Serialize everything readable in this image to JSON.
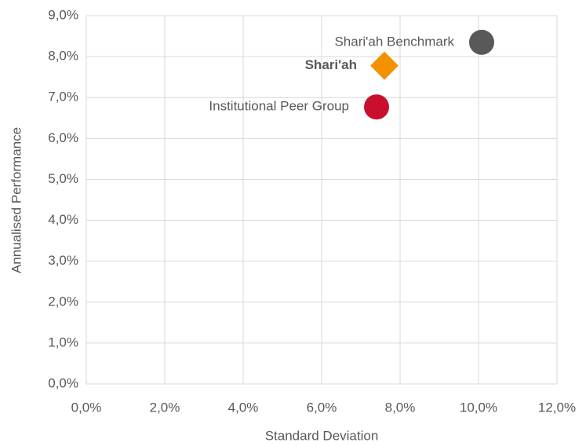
{
  "chart_data": {
    "type": "scatter",
    "x_label": "Standard Deviation",
    "y_label": "Annualised Performance",
    "xlim": [
      0,
      12
    ],
    "xticks": [
      {
        "value": 0,
        "label": "0,0%"
      },
      {
        "value": 2,
        "label": "2,0%"
      },
      {
        "value": 4,
        "label": "4,0%"
      },
      {
        "value": 6,
        "label": "6,0%"
      },
      {
        "value": 8,
        "label": "8,0%"
      },
      {
        "value": 10,
        "label": "10,0%"
      },
      {
        "value": 12,
        "label": "12,0%"
      }
    ],
    "ylim": [
      0,
      9
    ],
    "yticks": [
      {
        "value": 0,
        "label": "0,0%"
      },
      {
        "value": 1,
        "label": "1,0%"
      },
      {
        "value": 2,
        "label": "2,0%"
      },
      {
        "value": 3,
        "label": "3,0%"
      },
      {
        "value": 4,
        "label": "4,0%"
      },
      {
        "value": 5,
        "label": "5,0%"
      },
      {
        "value": 6,
        "label": "6,0%"
      },
      {
        "value": 7,
        "label": "7,0%"
      },
      {
        "value": 8,
        "label": "8,0%"
      },
      {
        "value": 9,
        "label": "9,0%"
      }
    ],
    "grid": true,
    "series": [
      {
        "name": "Shari'ah Benchmark",
        "color": "#595959",
        "marker": "circle",
        "label_bold": false,
        "x": [
          10.08
        ],
        "values": [
          8.35
        ]
      },
      {
        "name": "Shari'ah",
        "color": "#f39200",
        "marker": "diamond",
        "label_bold": true,
        "x": [
          7.6
        ],
        "values": [
          7.78
        ]
      },
      {
        "name": "Institutional Peer Group",
        "color": "#c8102e",
        "marker": "circle",
        "label_bold": false,
        "x": [
          7.4
        ],
        "values": [
          6.77
        ]
      }
    ]
  }
}
